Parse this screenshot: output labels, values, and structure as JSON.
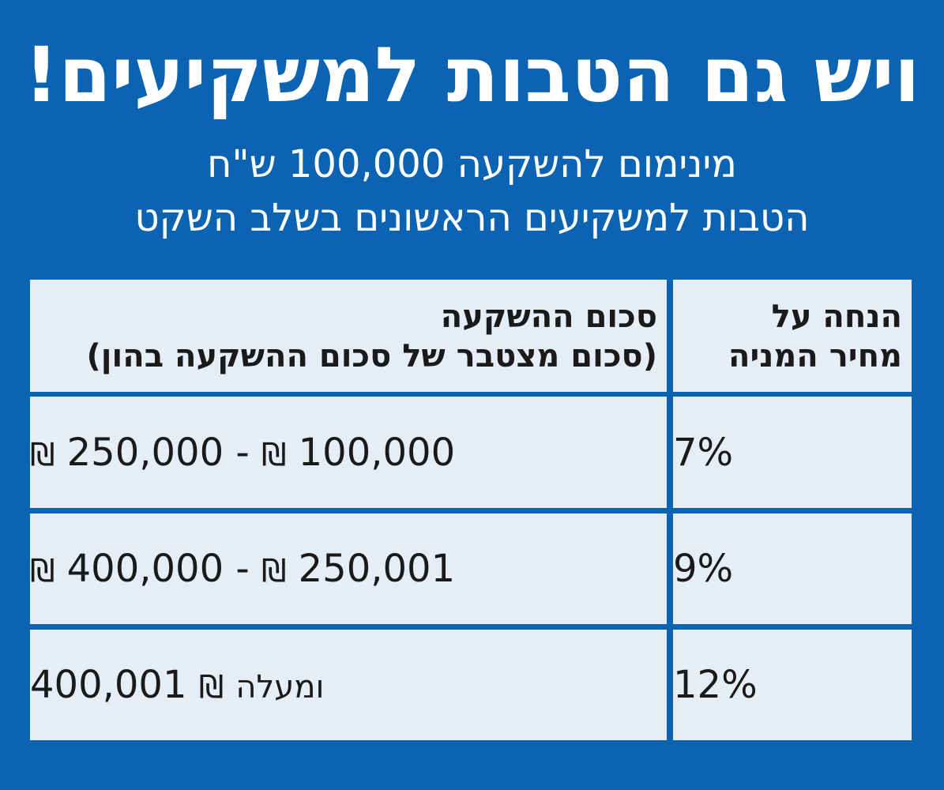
{
  "title": "ויש גם הטבות למשקיעים!",
  "subtitle_lines": [
    "מינימום להשקעה 100,000 ש\"ח",
    "הטבות למשקיעים הראשונים בשלב השקט"
  ],
  "table": {
    "header": {
      "discount_line1": "הנחה על",
      "discount_line2": "מחיר המניה",
      "amount_line1": "סכום ההשקעה",
      "amount_line2": "(סכום מצטבר של סכום ההשקעה בהון)"
    },
    "currency_symbol": "₪",
    "rows": [
      {
        "discount": "7%",
        "from": "100,000",
        "to": "250,000",
        "suffix": ""
      },
      {
        "discount": "9%",
        "from": "250,001",
        "to": "400,000",
        "suffix": ""
      },
      {
        "discount": "12%",
        "from": "400,001",
        "to": "",
        "suffix": "ומעלה"
      }
    ]
  },
  "colors": {
    "background": "#0b63b1",
    "cell": "#e5edf6",
    "text": "#1a1a1a"
  }
}
